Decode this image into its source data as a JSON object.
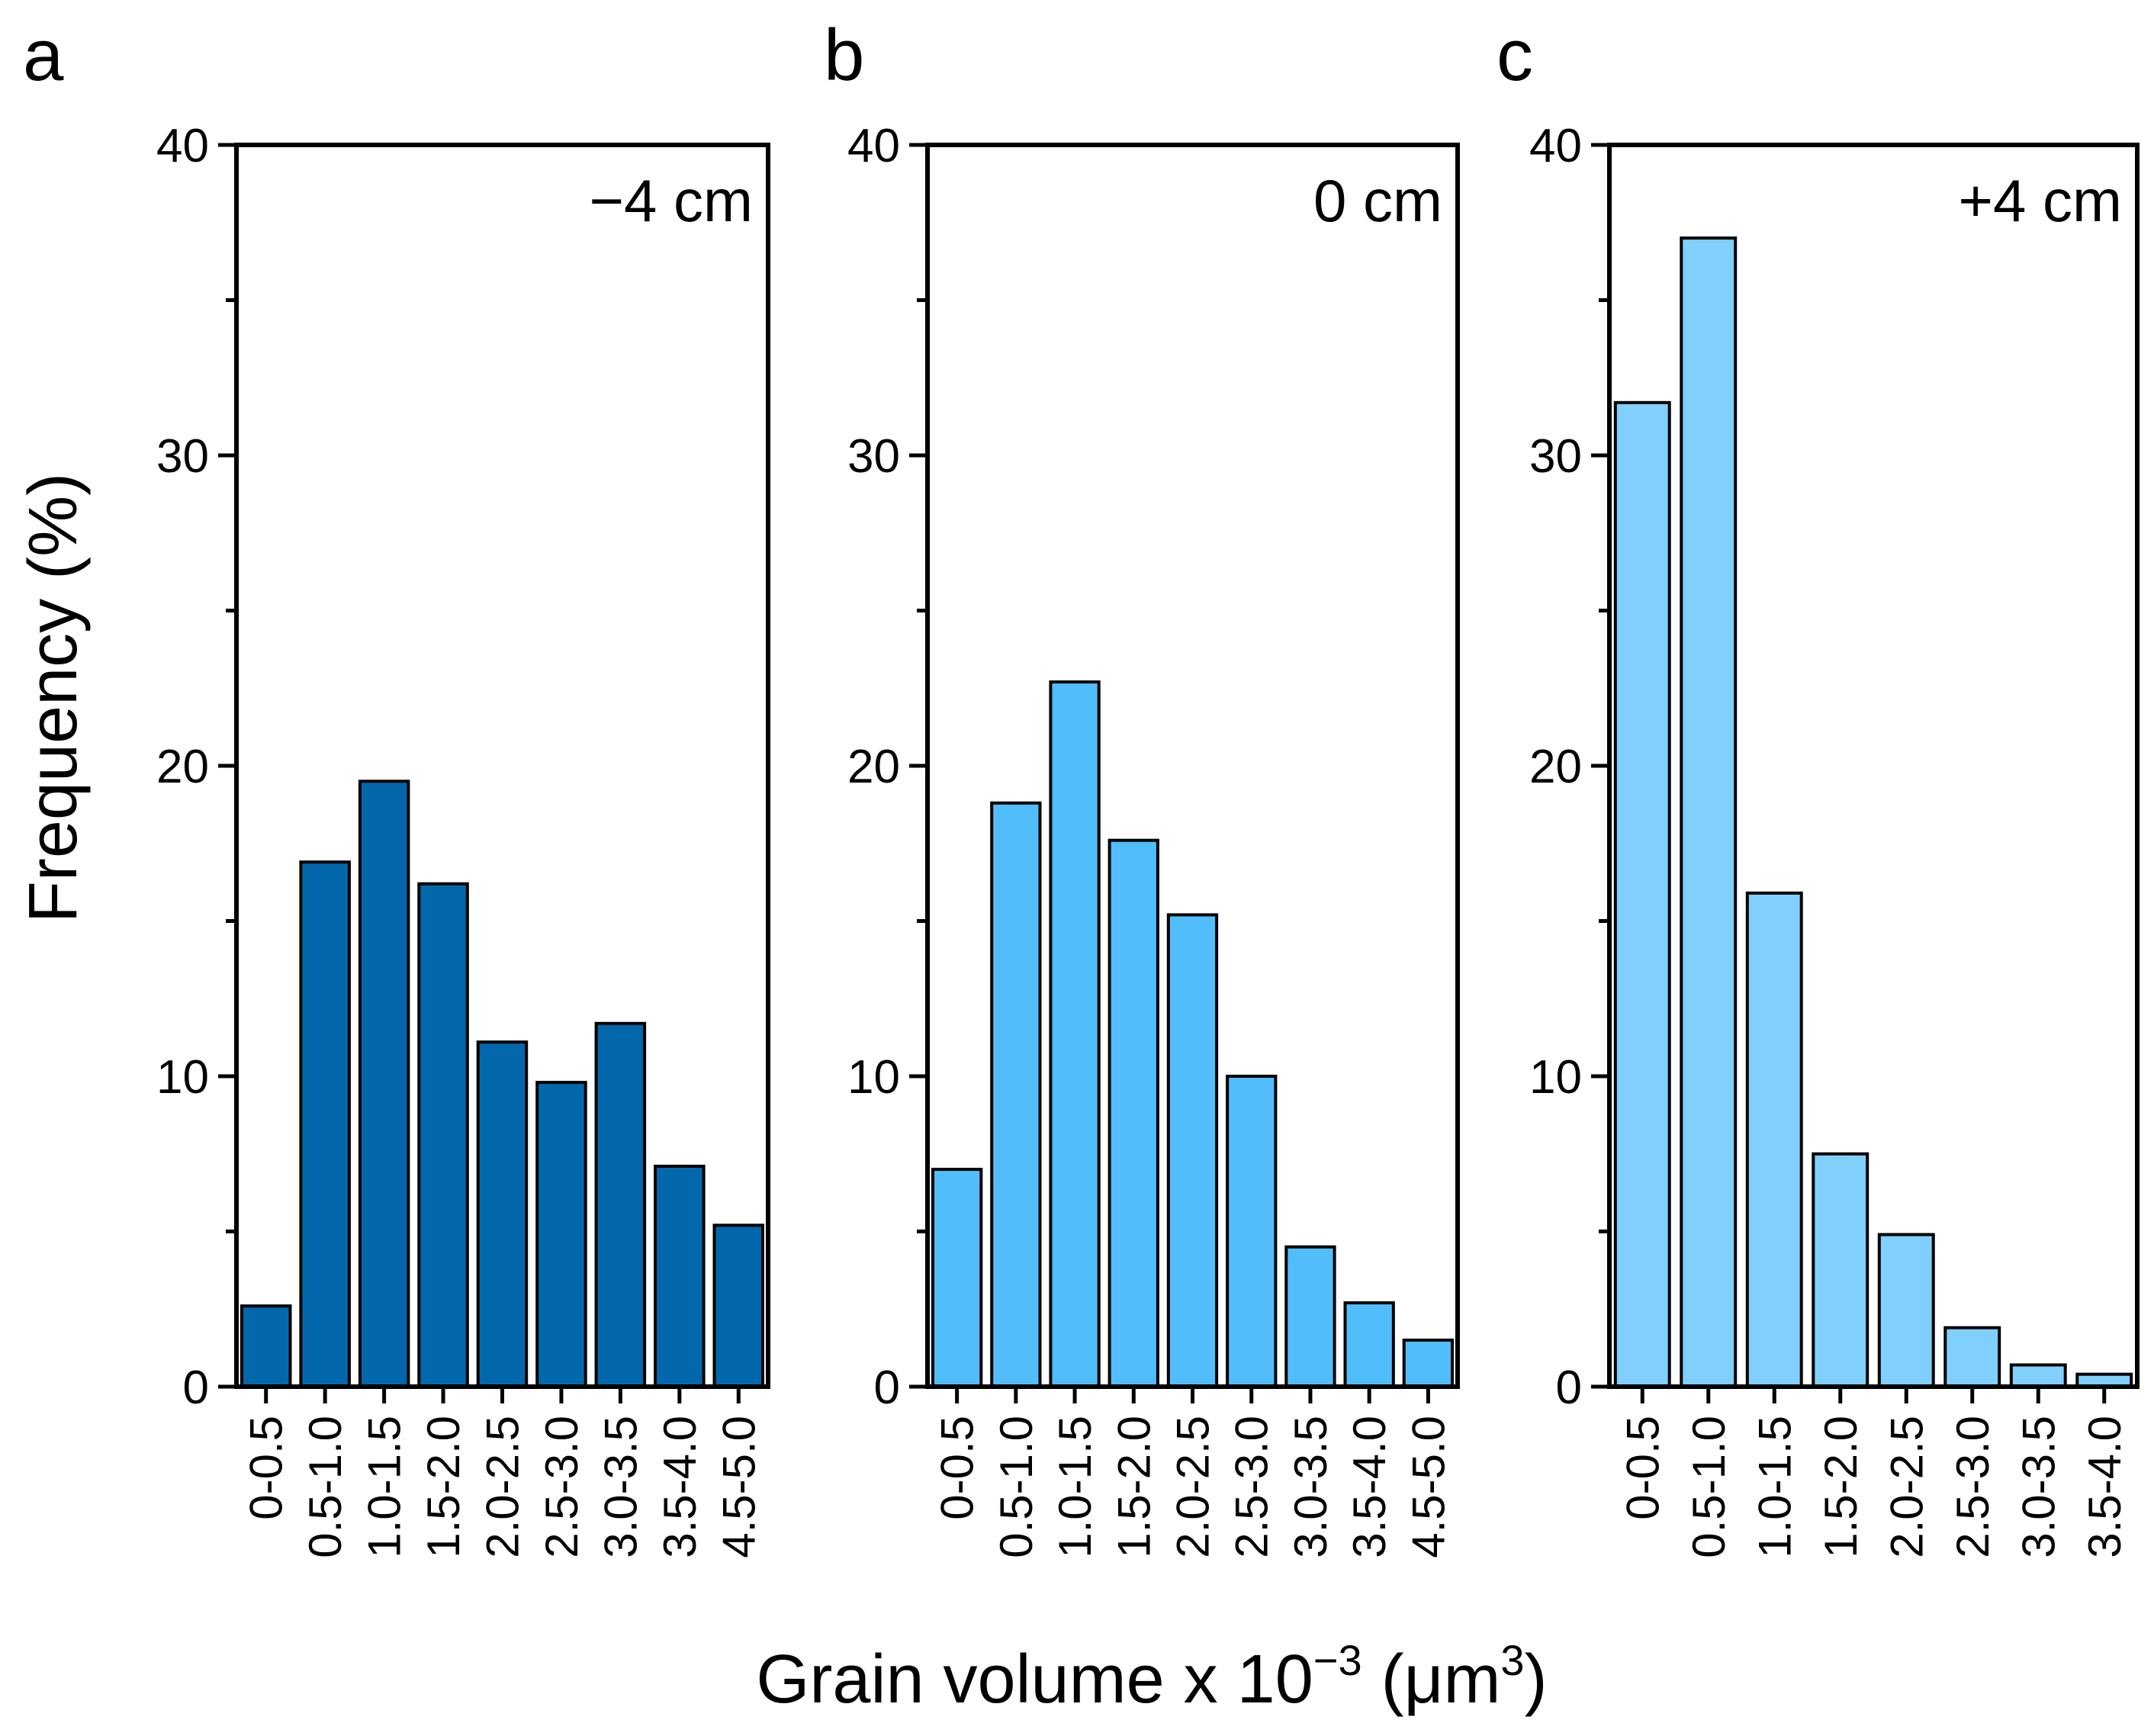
{
  "ylabel": "Frequency (%)",
  "xlabel": {
    "main": "Grain volume x 10",
    "exponent": "−3",
    "unit_open": " (μm",
    "unit_exponent": "3",
    "unit_close": ")"
  },
  "colors": {
    "panel_a": "#0267ab",
    "panel_b": "#52bdfb",
    "panel_c": "#80cffc",
    "edge": "#000000"
  },
  "chart_data": [
    {
      "type": "bar",
      "panel": "a",
      "annotation": "−4 cm",
      "categories": [
        "0-0.5",
        "0.5-1.0",
        "1.0-1.5",
        "1.5-2.0",
        "2.0-2.5",
        "2.5-3.0",
        "3.0-3.5",
        "3.5-4.0",
        "4.5-5.0"
      ],
      "values": [
        2.6,
        16.9,
        19.5,
        16.2,
        11.1,
        9.8,
        11.7,
        7.1,
        5.2
      ],
      "ylim": [
        0,
        40
      ],
      "yticks": [
        0,
        10,
        20,
        30,
        40
      ],
      "ylabel": "Frequency (%)"
    },
    {
      "type": "bar",
      "panel": "b",
      "annotation": "0 cm",
      "categories": [
        "0-0.5",
        "0.5-1.0",
        "1.0-1.5",
        "1.5-2.0",
        "2.0-2.5",
        "2.5-3.0",
        "3.0-3.5",
        "3.5-4.0",
        "4.5-5.0"
      ],
      "values": [
        7.0,
        18.8,
        22.7,
        17.6,
        15.2,
        10.0,
        4.5,
        2.7,
        1.5
      ],
      "ylim": [
        0,
        40
      ],
      "yticks": [
        0,
        10,
        20,
        30,
        40
      ]
    },
    {
      "type": "bar",
      "panel": "c",
      "annotation": "+4 cm",
      "categories": [
        "0-0.5",
        "0.5-1.0",
        "1.0-1.5",
        "1.5-2.0",
        "2.0-2.5",
        "2.5-3.0",
        "3.0-3.5",
        "3.5-4.0"
      ],
      "values": [
        31.7,
        37.0,
        15.9,
        7.5,
        4.9,
        1.9,
        0.7,
        0.4
      ],
      "ylim": [
        0,
        40
      ],
      "yticks": [
        0,
        10,
        20,
        30,
        40
      ]
    }
  ]
}
